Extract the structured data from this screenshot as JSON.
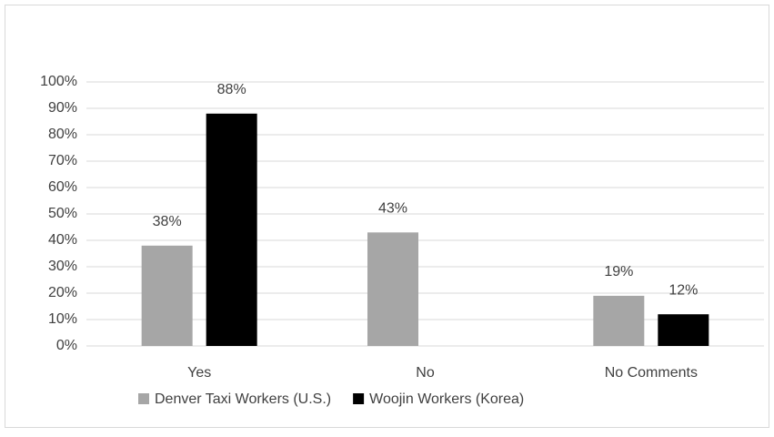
{
  "chart_data": {
    "type": "bar",
    "categories": [
      "Yes",
      "No",
      "No Comments"
    ],
    "series": [
      {
        "name": "Denver Taxi Workers (U.S.)",
        "color": "#a6a6a6",
        "values": [
          38,
          43,
          19
        ],
        "value_labels": [
          "38%",
          "43%",
          "19%"
        ]
      },
      {
        "name": "Woojin Workers (Korea)",
        "color": "#000000",
        "values": [
          88,
          null,
          12
        ],
        "value_labels": [
          "88%",
          null,
          "12%"
        ]
      }
    ],
    "ylim": [
      0,
      100
    ],
    "yticks": [
      {
        "value": 0,
        "label": "0%"
      },
      {
        "value": 10,
        "label": "10%"
      },
      {
        "value": 20,
        "label": "20%"
      },
      {
        "value": 30,
        "label": "30%"
      },
      {
        "value": 40,
        "label": "40%"
      },
      {
        "value": 50,
        "label": "50%"
      },
      {
        "value": 60,
        "label": "60%"
      },
      {
        "value": 70,
        "label": "70%"
      },
      {
        "value": 80,
        "label": "80%"
      },
      {
        "value": 90,
        "label": "90%"
      },
      {
        "value": 100,
        "label": "100%"
      }
    ],
    "grid": true,
    "legend": "bottom"
  }
}
